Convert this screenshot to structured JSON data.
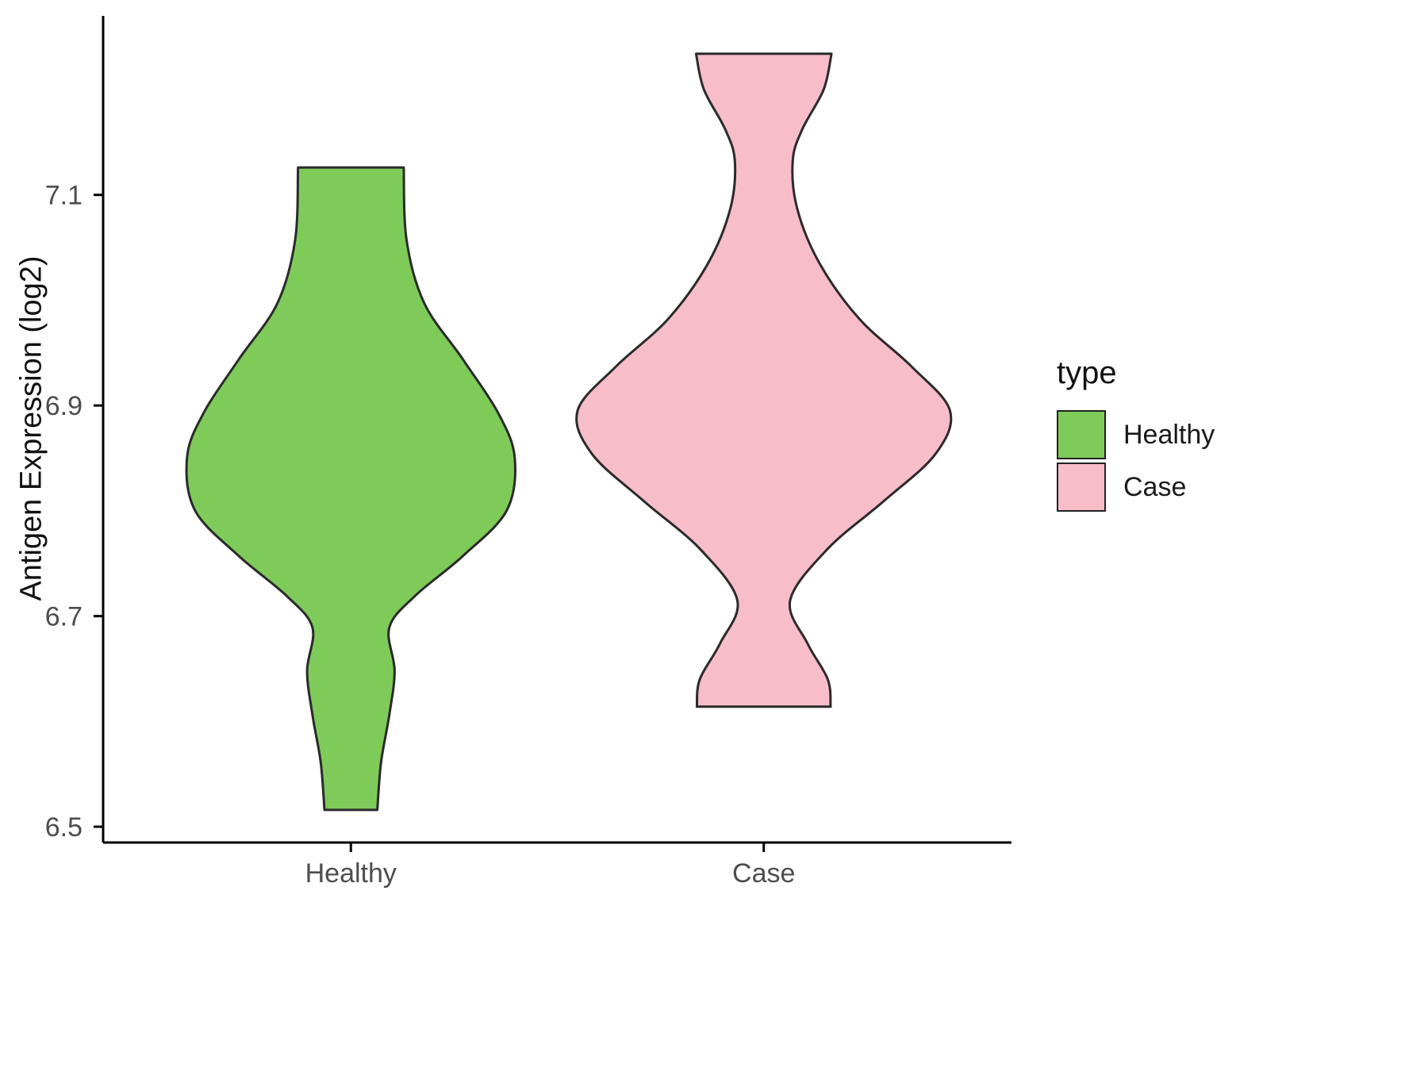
{
  "chart_data": {
    "type": "violin",
    "title": "",
    "xlabel": "",
    "ylabel": "Antigen Expression (log2)",
    "ylim": [
      6.485,
      7.27
    ],
    "grid": false,
    "legend_position": "right",
    "axis_color": "#000000",
    "tick_label_color": "#4d4d4d",
    "outline_color": "#2a2a2a",
    "categories": [
      "Healthy",
      "Case"
    ],
    "yticks": [
      {
        "value": 6.5,
        "label": "6.5"
      },
      {
        "value": 6.7,
        "label": "6.7"
      },
      {
        "value": 6.9,
        "label": "6.9"
      },
      {
        "value": 7.1,
        "label": "7.1"
      }
    ],
    "series": [
      {
        "name": "Healthy",
        "fill": "#7ecb5a",
        "value_range": [
          6.516,
          7.126
        ],
        "peak_value": 6.85,
        "profile": [
          [
            7.126,
            0.128
          ],
          [
            7.057,
            0.135
          ],
          [
            6.997,
            0.178
          ],
          [
            6.944,
            0.271
          ],
          [
            6.892,
            0.358
          ],
          [
            6.85,
            0.397
          ],
          [
            6.8,
            0.377
          ],
          [
            6.757,
            0.271
          ],
          [
            6.719,
            0.155
          ],
          [
            6.689,
            0.093
          ],
          [
            6.648,
            0.106
          ],
          [
            6.606,
            0.093
          ],
          [
            6.561,
            0.073
          ],
          [
            6.516,
            0.064
          ]
        ]
      },
      {
        "name": "Case",
        "fill": "#f7bdc9",
        "value_range": [
          6.614,
          7.234
        ],
        "peak_value": 6.895,
        "profile": [
          [
            7.234,
            0.164
          ],
          [
            7.2,
            0.145
          ],
          [
            7.162,
            0.093
          ],
          [
            7.132,
            0.07
          ],
          [
            7.087,
            0.081
          ],
          [
            7.035,
            0.135
          ],
          [
            6.982,
            0.232
          ],
          [
            6.937,
            0.358
          ],
          [
            6.895,
            0.451
          ],
          [
            6.854,
            0.416
          ],
          [
            6.809,
            0.29
          ],
          [
            6.764,
            0.155
          ],
          [
            6.715,
            0.064
          ],
          [
            6.674,
            0.106
          ],
          [
            6.64,
            0.155
          ],
          [
            6.614,
            0.162
          ]
        ]
      }
    ]
  },
  "legend": {
    "title": "type",
    "items": [
      {
        "label": "Healthy",
        "color": "#7ecb5a"
      },
      {
        "label": "Case",
        "color": "#f7bdc9"
      }
    ]
  }
}
